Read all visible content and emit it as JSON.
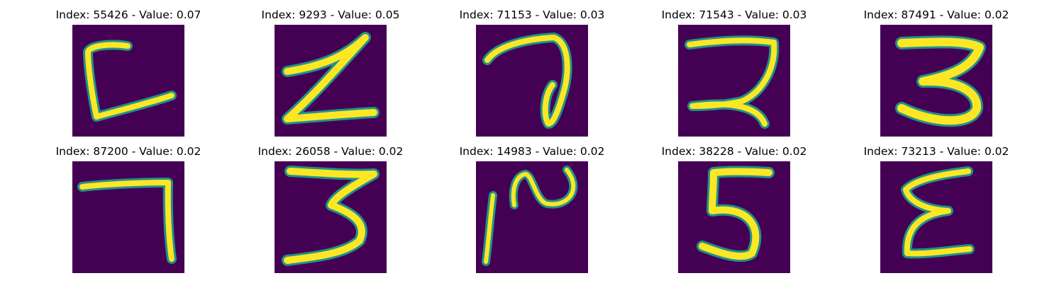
{
  "colors": {
    "background": "#440154",
    "mid": "#21918c",
    "stroke": "#fde725"
  },
  "panels": [
    {
      "title": "Index: 55426 - Value: 0.07",
      "glyph": "digit-glyph"
    },
    {
      "title": "Index: 9293 - Value: 0.05",
      "glyph": "digit-glyph"
    },
    {
      "title": "Index: 71153 - Value: 0.03",
      "glyph": "digit-glyph"
    },
    {
      "title": "Index: 71543 - Value: 0.03",
      "glyph": "digit-glyph"
    },
    {
      "title": "Index: 87491 - Value: 0.02",
      "glyph": "digit-glyph"
    },
    {
      "title": "Index: 87200 - Value: 0.02",
      "glyph": "digit-glyph"
    },
    {
      "title": "Index: 26058 - Value: 0.02",
      "glyph": "digit-glyph"
    },
    {
      "title": "Index: 14983 - Value: 0.02",
      "glyph": "digit-glyph"
    },
    {
      "title": "Index: 38228 - Value: 0.02",
      "glyph": "digit-glyph"
    },
    {
      "title": "Index: 73213 - Value: 0.02",
      "glyph": "digit-glyph"
    }
  ]
}
